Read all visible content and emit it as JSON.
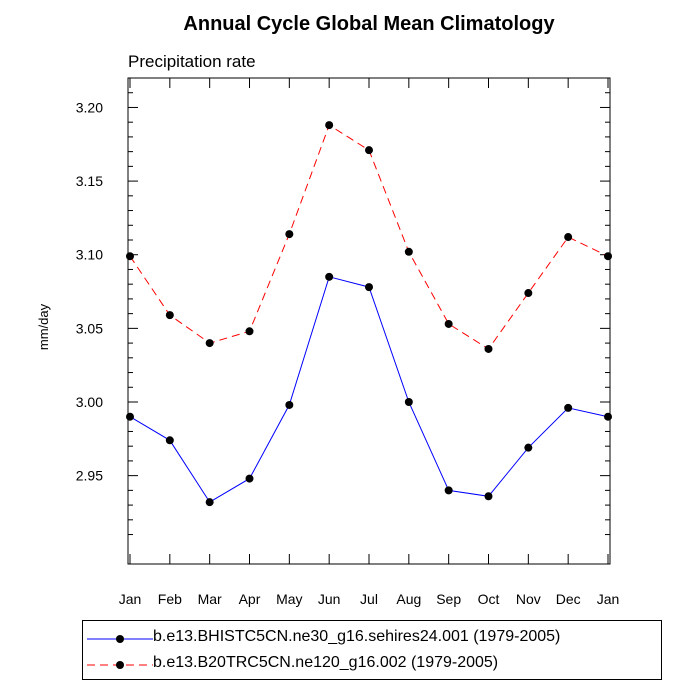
{
  "chart_data": {
    "type": "line",
    "title": "Annual Cycle Global Mean Climatology",
    "subtitle": "Precipitation rate",
    "ylabel": "mm/day",
    "xlabel": "",
    "categories": [
      "Jan",
      "Feb",
      "Mar",
      "Apr",
      "May",
      "Jun",
      "Jul",
      "Aug",
      "Sep",
      "Oct",
      "Nov",
      "Dec",
      "Jan"
    ],
    "ylim": [
      2.89,
      3.22
    ],
    "yticks": [
      "3.20",
      "3.15",
      "3.10",
      "3.05",
      "3.00",
      "2.95"
    ],
    "series": [
      {
        "name": "b.e13.BHISTC5CN.ne30_g16.sehires24.001 (1979-2005)",
        "color": "#0000ff",
        "dash": "solid",
        "values": [
          2.99,
          2.974,
          2.932,
          2.948,
          2.998,
          3.085,
          3.078,
          3.0,
          2.94,
          2.936,
          2.969,
          2.996,
          2.99
        ]
      },
      {
        "name": "b.e13.B20TRC5CN.ne120_g16.002 (1979-2005)",
        "color": "#ff0000",
        "dash": "dashed",
        "values": [
          3.099,
          3.059,
          3.04,
          3.048,
          3.114,
          3.188,
          3.171,
          3.102,
          3.053,
          3.036,
          3.074,
          3.112,
          3.099
        ]
      }
    ]
  }
}
